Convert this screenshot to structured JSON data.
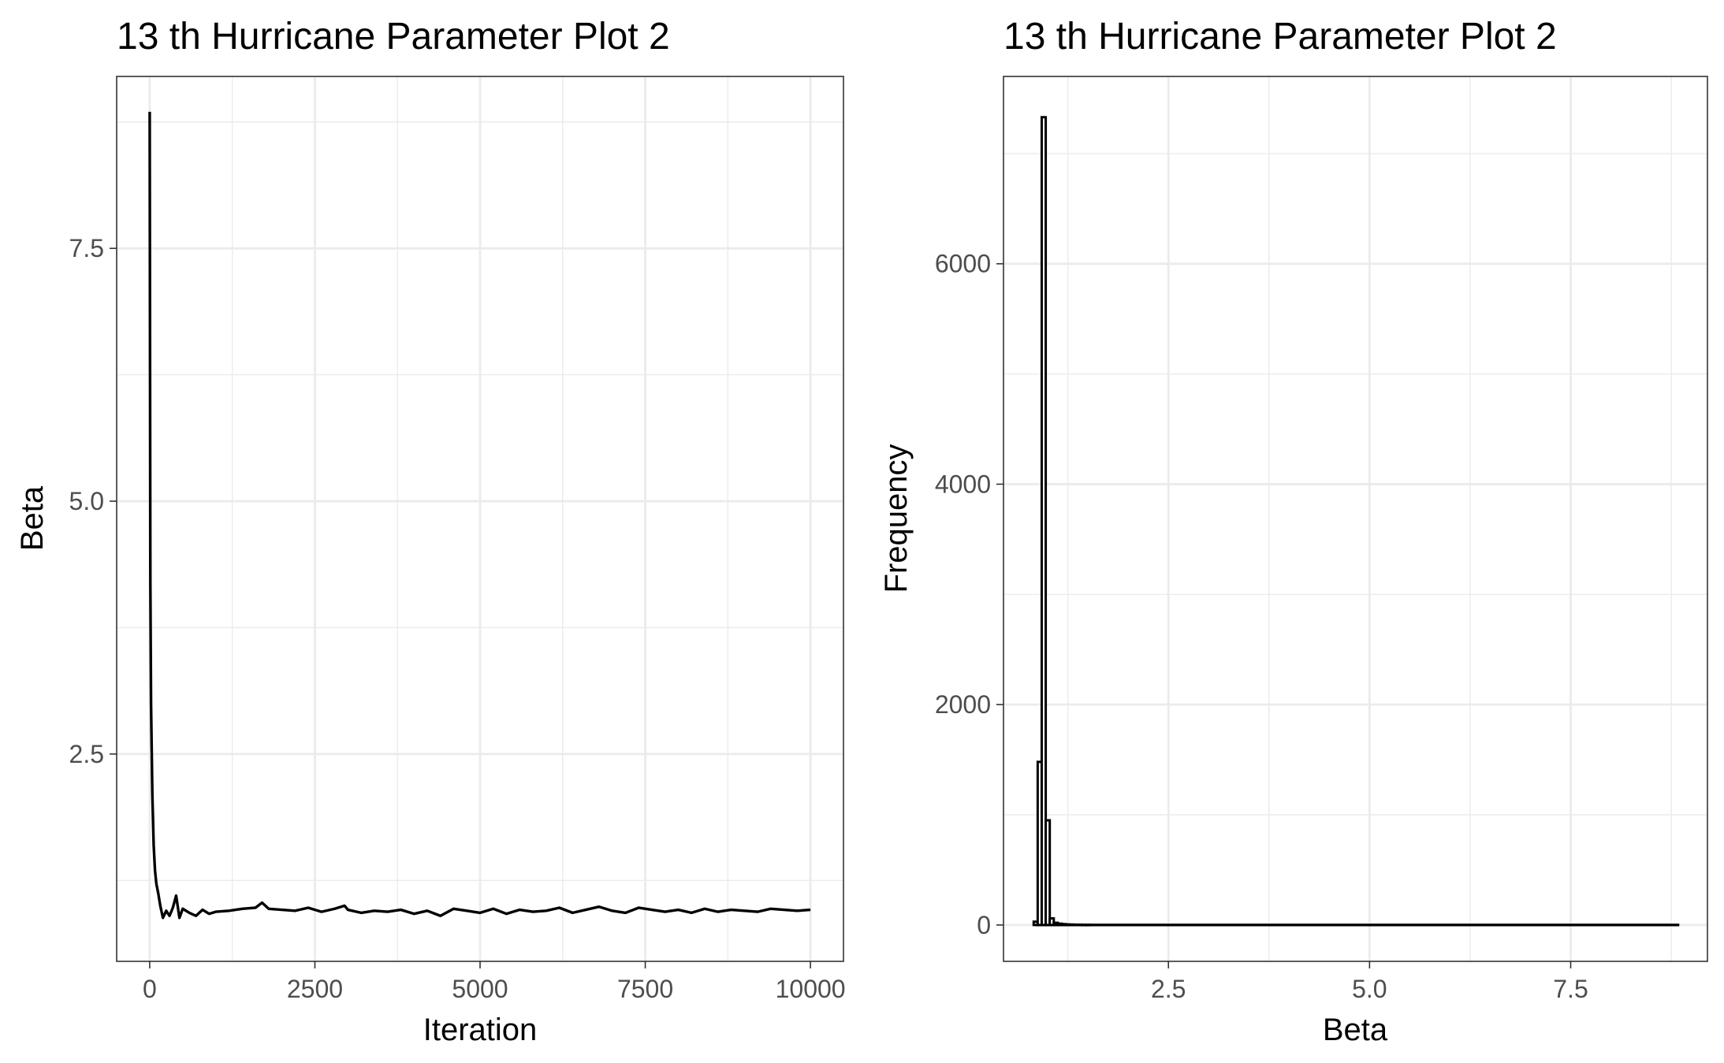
{
  "chart_data": [
    {
      "type": "line",
      "title": "13 th Hurricane Parameter Plot 2",
      "xlabel": "Iteration",
      "ylabel": "Beta",
      "xlim": [
        -500,
        10500
      ],
      "ylim": [
        0.45,
        9.2
      ],
      "x_ticks": [
        0,
        2500,
        5000,
        7500,
        10000
      ],
      "x_tick_labels": [
        "0",
        "2500",
        "5000",
        "7500",
        "10000"
      ],
      "y_ticks": [
        2.5,
        5.0,
        7.5
      ],
      "y_tick_labels": [
        "2.5",
        "5.0",
        "7.5"
      ],
      "grid": true,
      "series": [
        {
          "color": "#000000",
          "x": [
            0,
            5,
            10,
            20,
            40,
            60,
            80,
            100,
            130,
            160,
            200,
            250,
            300,
            350,
            400,
            450,
            500,
            600,
            700,
            800,
            900,
            1000,
            1200,
            1400,
            1600,
            1700,
            1800,
            2000,
            2200,
            2400,
            2600,
            2800,
            2950,
            3000,
            3200,
            3400,
            3600,
            3800,
            4000,
            4200,
            4400,
            4600,
            4800,
            5000,
            5200,
            5400,
            5600,
            5800,
            6000,
            6200,
            6400,
            6600,
            6800,
            7000,
            7200,
            7400,
            7600,
            7800,
            8000,
            8200,
            8400,
            8600,
            8800,
            9000,
            9200,
            9400,
            9600,
            9800,
            10000
          ],
          "y": [
            8.85,
            6.4,
            4.2,
            3.0,
            2.1,
            1.6,
            1.35,
            1.22,
            1.12,
            1.0,
            0.88,
            0.95,
            0.9,
            0.98,
            1.1,
            0.88,
            0.97,
            0.93,
            0.9,
            0.96,
            0.92,
            0.94,
            0.95,
            0.97,
            0.98,
            1.03,
            0.97,
            0.96,
            0.95,
            0.98,
            0.94,
            0.97,
            1.0,
            0.96,
            0.93,
            0.95,
            0.94,
            0.96,
            0.92,
            0.95,
            0.9,
            0.97,
            0.95,
            0.93,
            0.97,
            0.92,
            0.96,
            0.94,
            0.95,
            0.98,
            0.93,
            0.96,
            0.99,
            0.95,
            0.93,
            0.98,
            0.96,
            0.94,
            0.96,
            0.93,
            0.97,
            0.94,
            0.96,
            0.95,
            0.94,
            0.97,
            0.96,
            0.95,
            0.96
          ]
        }
      ]
    },
    {
      "type": "bar",
      "title": "13 th Hurricane Parameter Plot 2",
      "xlabel": "Beta",
      "ylabel": "Frequency",
      "xlim": [
        0.45,
        9.2
      ],
      "ylim": [
        -330,
        7700
      ],
      "x_ticks": [
        2.5,
        5.0,
        7.5
      ],
      "x_tick_labels": [
        "2.5",
        "5.0",
        "7.5"
      ],
      "y_ticks": [
        0,
        2000,
        4000,
        6000
      ],
      "y_tick_labels": [
        "0",
        "2000",
        "4000",
        "6000"
      ],
      "grid": true,
      "bin_width": 0.05,
      "bins": [
        {
          "x": 0.85,
          "value": 30
        },
        {
          "x": 0.9,
          "value": 1480
        },
        {
          "x": 0.95,
          "value": 7330
        },
        {
          "x": 1.0,
          "value": 950
        },
        {
          "x": 1.05,
          "value": 60
        },
        {
          "x": 1.1,
          "value": 20
        },
        {
          "x": 1.15,
          "value": 12
        },
        {
          "x": 1.2,
          "value": 8
        },
        {
          "x": 1.25,
          "value": 5
        },
        {
          "x": 1.3,
          "value": 4
        },
        {
          "x": 1.35,
          "value": 3
        },
        {
          "x": 1.4,
          "value": 3
        },
        {
          "x": 1.45,
          "value": 2
        },
        {
          "x": 1.5,
          "value": 2
        }
      ],
      "baseline_extent": [
        0.85,
        8.85
      ]
    }
  ]
}
